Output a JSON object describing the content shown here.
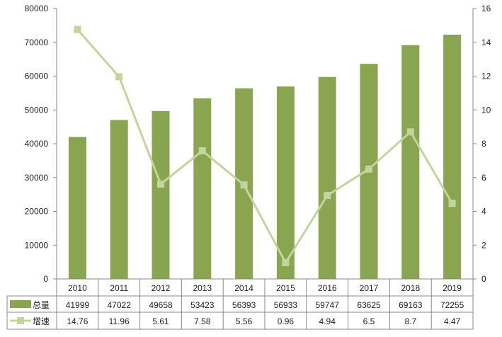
{
  "chart_data": {
    "type": "bar+line",
    "categories": [
      "2010",
      "2011",
      "2012",
      "2013",
      "2014",
      "2015",
      "2016",
      "2017",
      "2018",
      "2019"
    ],
    "series": [
      {
        "name": "总量",
        "type": "bar",
        "axis": "left",
        "color": "#8aa550",
        "values": [
          41999,
          47022,
          49658,
          53423,
          56393,
          56933,
          59747,
          63625,
          69163,
          72255
        ]
      },
      {
        "name": "增速",
        "type": "line",
        "axis": "right",
        "color": "#c3d49d",
        "values": [
          14.76,
          11.96,
          5.61,
          7.58,
          5.56,
          0.96,
          4.94,
          6.5,
          8.7,
          4.47
        ]
      }
    ],
    "left_axis": {
      "range": [
        0,
        80000
      ],
      "ticks": [
        "0",
        "10000",
        "20000",
        "30000",
        "40000",
        "50000",
        "60000",
        "70000",
        "80000"
      ]
    },
    "right_axis": {
      "range": [
        0,
        16
      ],
      "ticks": [
        "0",
        "2",
        "4",
        "6",
        "8",
        "10",
        "12",
        "14",
        "16"
      ]
    },
    "grid": false,
    "legend": "data-table",
    "data_table": true
  }
}
